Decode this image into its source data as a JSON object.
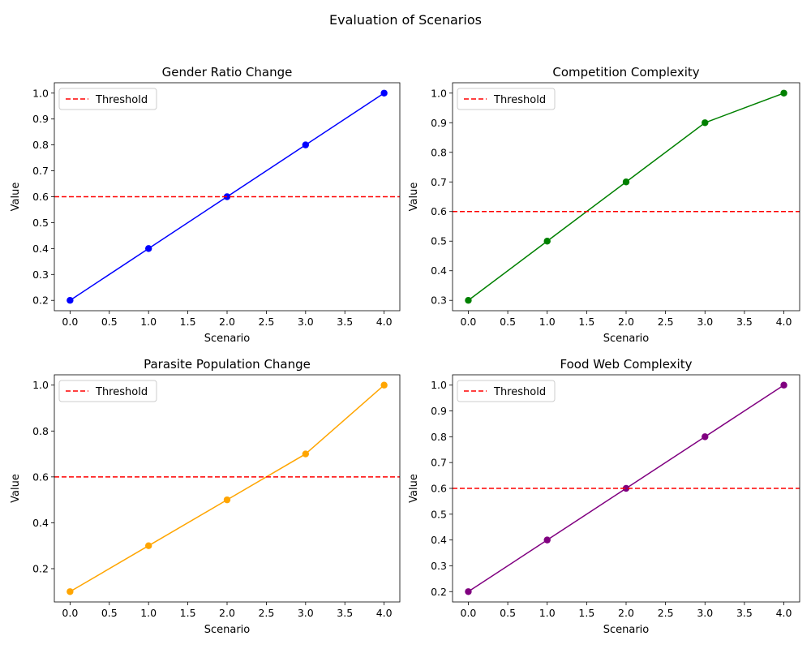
{
  "figure": {
    "title": "Evaluation of Scenarios"
  },
  "chart_data": [
    {
      "type": "line",
      "title": "Gender Ratio Change",
      "xlabel": "Scenario",
      "ylabel": "Value",
      "x": [
        0,
        1,
        2,
        3,
        4
      ],
      "series": [
        {
          "values": [
            0.2,
            0.4,
            0.6,
            0.8,
            1.0
          ],
          "color": "#0000ff",
          "marker": "circle"
        }
      ],
      "threshold": {
        "name": "Threshold",
        "value": 0.6,
        "color": "#ff0000",
        "style": "dashed"
      },
      "xlim": [
        -0.2,
        4.2
      ],
      "ylim": [
        0.16,
        1.04
      ],
      "xticks": [
        "0.0",
        "0.5",
        "1.0",
        "1.5",
        "2.0",
        "2.5",
        "3.0",
        "3.5",
        "4.0"
      ],
      "yticks": [
        "0.2",
        "0.3",
        "0.4",
        "0.5",
        "0.6",
        "0.7",
        "0.8",
        "0.9",
        "1.0"
      ],
      "legend": "top-left",
      "grid": false
    },
    {
      "type": "line",
      "title": "Competition Complexity",
      "xlabel": "Scenario",
      "ylabel": "Value",
      "x": [
        0,
        1,
        2,
        3,
        4
      ],
      "series": [
        {
          "values": [
            0.3,
            0.5,
            0.7,
            0.9,
            1.0
          ],
          "color": "#008000",
          "marker": "circle"
        }
      ],
      "threshold": {
        "name": "Threshold",
        "value": 0.6,
        "color": "#ff0000",
        "style": "dashed"
      },
      "xlim": [
        -0.2,
        4.2
      ],
      "ylim": [
        0.265,
        1.035
      ],
      "xticks": [
        "0.0",
        "0.5",
        "1.0",
        "1.5",
        "2.0",
        "2.5",
        "3.0",
        "3.5",
        "4.0"
      ],
      "yticks": [
        "0.3",
        "0.4",
        "0.5",
        "0.6",
        "0.7",
        "0.8",
        "0.9",
        "1.0"
      ],
      "legend": "top-left",
      "grid": false
    },
    {
      "type": "line",
      "title": "Parasite Population Change",
      "xlabel": "Scenario",
      "ylabel": "Value",
      "x": [
        0,
        1,
        2,
        3,
        4
      ],
      "series": [
        {
          "values": [
            0.1,
            0.3,
            0.5,
            0.7,
            1.0
          ],
          "color": "#ffa500",
          "marker": "circle"
        }
      ],
      "threshold": {
        "name": "Threshold",
        "value": 0.6,
        "color": "#ff0000",
        "style": "dashed"
      },
      "xlim": [
        -0.2,
        4.2
      ],
      "ylim": [
        0.055,
        1.045
      ],
      "xticks": [
        "0.0",
        "0.5",
        "1.0",
        "1.5",
        "2.0",
        "2.5",
        "3.0",
        "3.5",
        "4.0"
      ],
      "yticks": [
        "0.2",
        "0.4",
        "0.6",
        "0.8",
        "1.0"
      ],
      "legend": "top-left",
      "grid": false
    },
    {
      "type": "line",
      "title": "Food Web Complexity",
      "xlabel": "Scenario",
      "ylabel": "Value",
      "x": [
        0,
        1,
        2,
        3,
        4
      ],
      "series": [
        {
          "values": [
            0.2,
            0.4,
            0.6,
            0.8,
            1.0
          ],
          "color": "#800080",
          "marker": "circle"
        }
      ],
      "threshold": {
        "name": "Threshold",
        "value": 0.6,
        "color": "#ff0000",
        "style": "dashed"
      },
      "xlim": [
        -0.2,
        4.2
      ],
      "ylim": [
        0.16,
        1.04
      ],
      "xticks": [
        "0.0",
        "0.5",
        "1.0",
        "1.5",
        "2.0",
        "2.5",
        "3.0",
        "3.5",
        "4.0"
      ],
      "yticks": [
        "0.2",
        "0.3",
        "0.4",
        "0.5",
        "0.6",
        "0.7",
        "0.8",
        "0.9",
        "1.0"
      ],
      "legend": "top-left",
      "grid": false
    }
  ]
}
